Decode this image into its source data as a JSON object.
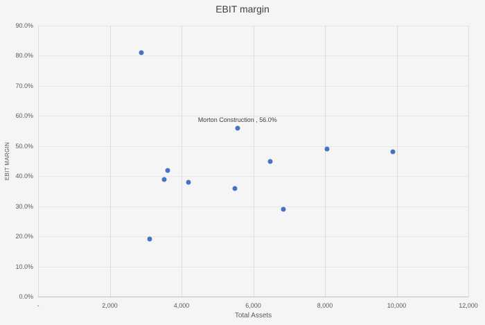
{
  "chart_data": {
    "type": "scatter",
    "title": "EBIT margin",
    "xlabel": "Total Assets",
    "ylabel": "EBIT MARGIN",
    "xlim": [
      0,
      12000
    ],
    "ylim_percent": [
      0,
      90
    ],
    "legend": "none",
    "grid": {
      "vertical": true,
      "horizontal": true
    },
    "marker_color": "#4472C4",
    "x_ticks": [
      {
        "value": 0,
        "label": "-"
      },
      {
        "value": 2000,
        "label": "2,000"
      },
      {
        "value": 4000,
        "label": "4,000"
      },
      {
        "value": 6000,
        "label": "6,000"
      },
      {
        "value": 8000,
        "label": "8,000"
      },
      {
        "value": 10000,
        "label": "10,000"
      },
      {
        "value": 12000,
        "label": "12,000"
      }
    ],
    "y_ticks": [
      {
        "value": 0,
        "label": "0.0%"
      },
      {
        "value": 10,
        "label": "10.0%"
      },
      {
        "value": 20,
        "label": "20.0%"
      },
      {
        "value": 30,
        "label": "30.0%"
      },
      {
        "value": 40,
        "label": "40.0%"
      },
      {
        "value": 50,
        "label": "50.0%"
      },
      {
        "value": 60,
        "label": "60.0%"
      },
      {
        "value": 70,
        "label": "70.0%"
      },
      {
        "value": 80,
        "label": "80.0%"
      },
      {
        "value": 90,
        "label": "90.0%"
      }
    ],
    "points": [
      {
        "x": 2880,
        "y": 81
      },
      {
        "x": 3110,
        "y": 19
      },
      {
        "x": 3520,
        "y": 39
      },
      {
        "x": 3610,
        "y": 42
      },
      {
        "x": 4200,
        "y": 38
      },
      {
        "x": 5490,
        "y": 36
      },
      {
        "x": 5560,
        "y": 56,
        "label": "Morton Construction , 56.0%"
      },
      {
        "x": 6480,
        "y": 45
      },
      {
        "x": 6850,
        "y": 29
      },
      {
        "x": 8050,
        "y": 49
      },
      {
        "x": 9900,
        "y": 48
      }
    ],
    "annotation": "Morton Construction , 56.0%"
  },
  "colors": {
    "marker": "#4472C4",
    "gridline_vertical": "#dcdcdc",
    "gridline_horizontal": "#e6e6e6",
    "axis_line": "#bfbfbf",
    "tick_text": "#595959",
    "title_text": "#3f3f3f",
    "background": "#f5f5f5"
  }
}
